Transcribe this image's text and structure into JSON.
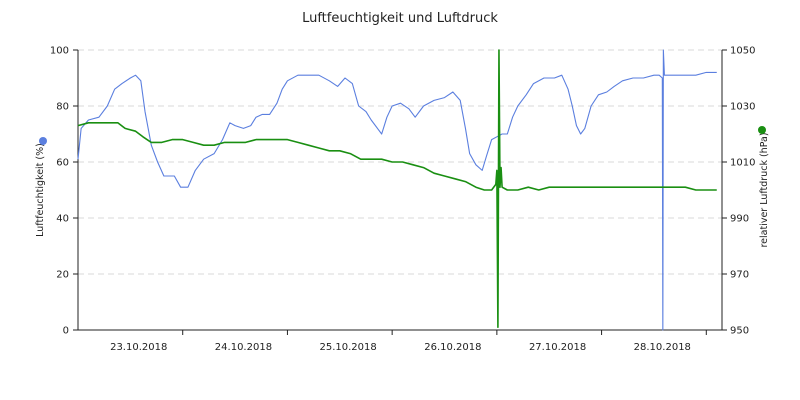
{
  "chart_data": {
    "type": "line",
    "title": "Luftfeuchtigkeit und Luftdruck",
    "y_left": {
      "label": "Luftfeuchtigkeit (%)",
      "lim": [
        0,
        100
      ],
      "ticks": [
        0,
        20,
        40,
        60,
        80,
        100
      ]
    },
    "y_right": {
      "label": "relativer Luftdruck (hPa)",
      "lim": [
        950,
        1050
      ],
      "ticks": [
        950,
        970,
        990,
        1010,
        1030,
        1050
      ]
    },
    "x_ticks": [
      {
        "label": "23.10.2018",
        "x": 1.0
      },
      {
        "label": "24.10.2018",
        "x": 2.0
      },
      {
        "label": "25.10.2018",
        "x": 3.0
      },
      {
        "label": "26.10.2018",
        "x": 4.0
      },
      {
        "label": "27.10.2018",
        "x": 5.0
      },
      {
        "label": "28.10.2018",
        "x": 6.0
      }
    ],
    "x_range": [
      0.0,
      6.15
    ],
    "grid": true,
    "legend": "none",
    "series": [
      {
        "axis": "left",
        "color": "#5b7fdf",
        "marker_color": "#5b7fdf",
        "points": [
          [
            0.0,
            61
          ],
          [
            0.03,
            72
          ],
          [
            0.1,
            75
          ],
          [
            0.2,
            76
          ],
          [
            0.28,
            80
          ],
          [
            0.35,
            86
          ],
          [
            0.42,
            88
          ],
          [
            0.5,
            90
          ],
          [
            0.55,
            91
          ],
          [
            0.6,
            89
          ],
          [
            0.64,
            78
          ],
          [
            0.7,
            66
          ],
          [
            0.76,
            60
          ],
          [
            0.82,
            55
          ],
          [
            0.92,
            55
          ],
          [
            0.98,
            51
          ],
          [
            1.05,
            51
          ],
          [
            1.12,
            57
          ],
          [
            1.2,
            61
          ],
          [
            1.3,
            63
          ],
          [
            1.38,
            68
          ],
          [
            1.45,
            74
          ],
          [
            1.5,
            73
          ],
          [
            1.58,
            72
          ],
          [
            1.65,
            73
          ],
          [
            1.7,
            76
          ],
          [
            1.76,
            77
          ],
          [
            1.83,
            77
          ],
          [
            1.9,
            81
          ],
          [
            1.95,
            86
          ],
          [
            2.0,
            89
          ],
          [
            2.1,
            91
          ],
          [
            2.2,
            91
          ],
          [
            2.3,
            91
          ],
          [
            2.4,
            89
          ],
          [
            2.48,
            87
          ],
          [
            2.55,
            90
          ],
          [
            2.62,
            88
          ],
          [
            2.68,
            80
          ],
          [
            2.75,
            78
          ],
          [
            2.8,
            75
          ],
          [
            2.86,
            72
          ],
          [
            2.9,
            70
          ],
          [
            2.95,
            76
          ],
          [
            3.0,
            80
          ],
          [
            3.08,
            81
          ],
          [
            3.16,
            79
          ],
          [
            3.22,
            76
          ],
          [
            3.3,
            80
          ],
          [
            3.4,
            82
          ],
          [
            3.5,
            83
          ],
          [
            3.58,
            85
          ],
          [
            3.65,
            82
          ],
          [
            3.7,
            72
          ],
          [
            3.74,
            63
          ],
          [
            3.8,
            59
          ],
          [
            3.86,
            57
          ],
          [
            3.9,
            62
          ],
          [
            3.95,
            68
          ],
          [
            4.0,
            69
          ],
          [
            4.05,
            70
          ],
          [
            4.1,
            70
          ],
          [
            4.15,
            76
          ],
          [
            4.2,
            80
          ],
          [
            4.28,
            84
          ],
          [
            4.35,
            88
          ],
          [
            4.45,
            90
          ],
          [
            4.55,
            90
          ],
          [
            4.62,
            91
          ],
          [
            4.68,
            86
          ],
          [
            4.72,
            80
          ],
          [
            4.76,
            73
          ],
          [
            4.8,
            70
          ],
          [
            4.84,
            72
          ],
          [
            4.9,
            80
          ],
          [
            4.97,
            84
          ],
          [
            5.05,
            85
          ],
          [
            5.12,
            87
          ],
          [
            5.2,
            89
          ],
          [
            5.3,
            90
          ],
          [
            5.4,
            90
          ],
          [
            5.5,
            91
          ],
          [
            5.55,
            91
          ],
          [
            5.58,
            90
          ],
          [
            5.585,
            0
          ],
          [
            5.59,
            100
          ],
          [
            5.6,
            91
          ],
          [
            5.7,
            91
          ],
          [
            5.8,
            91
          ],
          [
            5.9,
            91
          ],
          [
            6.0,
            92
          ],
          [
            6.1,
            92
          ]
        ]
      },
      {
        "axis": "right",
        "color": "#1a8f12",
        "marker_color": "#1a8f12",
        "points": [
          [
            0.0,
            1023
          ],
          [
            0.1,
            1024
          ],
          [
            0.2,
            1024
          ],
          [
            0.3,
            1024
          ],
          [
            0.38,
            1024
          ],
          [
            0.45,
            1022
          ],
          [
            0.55,
            1021
          ],
          [
            0.62,
            1019
          ],
          [
            0.7,
            1017
          ],
          [
            0.8,
            1017
          ],
          [
            0.9,
            1018
          ],
          [
            1.0,
            1018
          ],
          [
            1.1,
            1017
          ],
          [
            1.2,
            1016
          ],
          [
            1.3,
            1016
          ],
          [
            1.4,
            1017
          ],
          [
            1.5,
            1017
          ],
          [
            1.6,
            1017
          ],
          [
            1.7,
            1018
          ],
          [
            1.8,
            1018
          ],
          [
            1.9,
            1018
          ],
          [
            2.0,
            1018
          ],
          [
            2.1,
            1017
          ],
          [
            2.2,
            1016
          ],
          [
            2.3,
            1015
          ],
          [
            2.4,
            1014
          ],
          [
            2.5,
            1014
          ],
          [
            2.6,
            1013
          ],
          [
            2.7,
            1011
          ],
          [
            2.8,
            1011
          ],
          [
            2.9,
            1011
          ],
          [
            3.0,
            1010
          ],
          [
            3.1,
            1010
          ],
          [
            3.2,
            1009
          ],
          [
            3.3,
            1008
          ],
          [
            3.4,
            1006
          ],
          [
            3.5,
            1005
          ],
          [
            3.6,
            1004
          ],
          [
            3.7,
            1003
          ],
          [
            3.8,
            1001
          ],
          [
            3.88,
            1000
          ],
          [
            3.95,
            1000
          ],
          [
            3.99,
            1002
          ],
          [
            4.0,
            1007
          ],
          [
            4.01,
            951
          ],
          [
            4.02,
            1050
          ],
          [
            4.03,
            1001
          ],
          [
            4.04,
            1008
          ],
          [
            4.05,
            1001
          ],
          [
            4.1,
            1000
          ],
          [
            4.2,
            1000
          ],
          [
            4.3,
            1001
          ],
          [
            4.4,
            1000
          ],
          [
            4.5,
            1001
          ],
          [
            4.6,
            1001
          ],
          [
            4.7,
            1001
          ],
          [
            4.8,
            1001
          ],
          [
            4.9,
            1001
          ],
          [
            5.0,
            1001
          ],
          [
            5.1,
            1001
          ],
          [
            5.2,
            1001
          ],
          [
            5.3,
            1001
          ],
          [
            5.4,
            1001
          ],
          [
            5.5,
            1001
          ],
          [
            5.6,
            1001
          ],
          [
            5.7,
            1001
          ],
          [
            5.8,
            1001
          ],
          [
            5.9,
            1000
          ],
          [
            6.0,
            1000
          ],
          [
            6.1,
            1000
          ]
        ]
      }
    ]
  }
}
